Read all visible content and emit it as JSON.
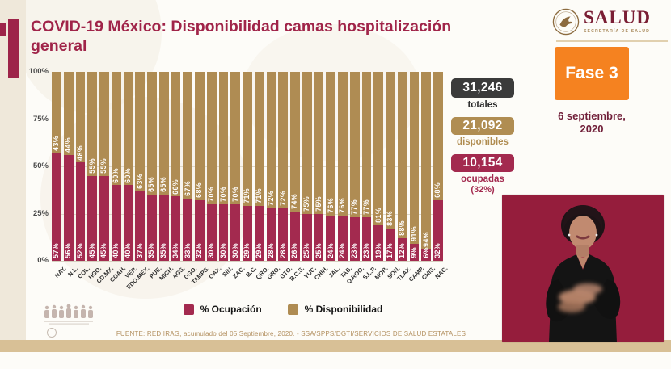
{
  "header": {
    "title": "COVID-19 México: Disponibilidad camas hospitalización general"
  },
  "logo": {
    "name": "SALUD",
    "subtitle": "SECRETARÍA DE SALUD"
  },
  "phase": {
    "label": "Fase 3",
    "color": "#F58220",
    "date_line1": "6 septiembre,",
    "date_line2": "2020"
  },
  "stats": [
    {
      "value": "31,246",
      "label": "totales",
      "color": "#3B3B3B",
      "label_color": "#2B2B2B"
    },
    {
      "value": "21,092",
      "label": "disponibles",
      "color": "#B08D52",
      "label_color": "#B08D52"
    },
    {
      "value": "10,154",
      "label": "ocupadas",
      "sublabel": "(32%)",
      "color": "#A32A4F",
      "label_color": "#A32A4F"
    }
  ],
  "chart_data": {
    "type": "bar",
    "stacked": true,
    "title": "COVID-19 México: Disponibilidad camas hospitalización general",
    "categories": [
      "NAY.",
      "N.L.",
      "COL.",
      "HGO.",
      "CD.MX.",
      "COAH.",
      "VER.",
      "EDO.MEX.",
      "PUE.",
      "MICH.",
      "AGS.",
      "DGO.",
      "TAMPS.",
      "OAX.",
      "SIN.",
      "ZAC.",
      "B.C.",
      "QRO.",
      "GRO.",
      "GTO.",
      "B.C.S.",
      "YUC.",
      "CHIH.",
      "JAL.",
      "TAB.",
      "Q.ROO.",
      "S.L.P.",
      "MOR.",
      "SON.",
      "TLAX.",
      "CAMP.",
      "CHIS.",
      "NAC."
    ],
    "series": [
      {
        "name": "% Ocupación",
        "color": "#A32A4F",
        "values": [
          57,
          56,
          52,
          45,
          45,
          40,
          40,
          37,
          35,
          35,
          34,
          33,
          32,
          30,
          30,
          30,
          29,
          29,
          28,
          28,
          26,
          25,
          25,
          24,
          24,
          23,
          23,
          19,
          17,
          12,
          9,
          6,
          32
        ]
      },
      {
        "name": "% Disponibilidad",
        "color": "#AF8C53",
        "values": [
          43,
          44,
          48,
          55,
          55,
          60,
          60,
          63,
          65,
          65,
          66,
          67,
          68,
          70,
          70,
          70,
          71,
          71,
          72,
          72,
          74,
          75,
          75,
          76,
          76,
          77,
          77,
          81,
          83,
          88,
          91,
          94,
          68
        ]
      }
    ],
    "y_ticks": [
      "100%",
      "75%",
      "50%",
      "25%",
      "0%"
    ],
    "ylim": [
      0,
      100
    ],
    "ylabel": "",
    "xlabel": "",
    "legend_position": "bottom"
  },
  "footer": {
    "source": "FUENTE: RED IRAG, acumulado del 05 Septiembre, 2020. - SSA/SPPS/DGTI/SERVICIOS DE SALUD ESTATALES"
  }
}
